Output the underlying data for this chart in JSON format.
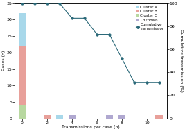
{
  "bar_data": {
    "x": [
      0,
      1,
      2,
      3,
      4,
      5,
      6,
      7,
      8,
      9,
      10,
      11
    ],
    "cluster_a": [
      10,
      0,
      0,
      1,
      0,
      0,
      0,
      0,
      0,
      0,
      0,
      0
    ],
    "cluster_b": [
      18,
      0,
      1,
      0,
      0,
      0,
      0,
      0,
      0,
      0,
      0,
      1
    ],
    "cluster_c": [
      4,
      0,
      0,
      0,
      0,
      0,
      0,
      0,
      0,
      0,
      0,
      0
    ],
    "unknown": [
      0,
      0,
      0,
      0,
      1,
      0,
      0,
      1,
      1,
      0,
      0,
      0
    ]
  },
  "cumulative": {
    "x": [
      0,
      1,
      2,
      3,
      4,
      5,
      6,
      7,
      8,
      9,
      10,
      11
    ],
    "y": [
      100,
      100,
      100,
      100,
      87,
      87,
      73,
      73,
      52,
      31,
      31,
      31
    ]
  },
  "colors": {
    "cluster_a": "#a8d8ea",
    "cluster_b": "#e8a09a",
    "cluster_c": "#b8d8a0",
    "unknown": "#b0a8d0",
    "line": "#2a6878",
    "marker_face": "#2a6878",
    "marker_edge": "#2a6878"
  },
  "ylim_left": [
    0,
    35
  ],
  "ylim_right": [
    0,
    100
  ],
  "xlim": [
    -0.6,
    11.6
  ],
  "xlabel": "Transmissions per case (n)",
  "ylabel_left": "Cases (n)",
  "ylabel_right": "Cumulative transmission (%)",
  "xticks": [
    0,
    2,
    4,
    6,
    8,
    10
  ],
  "yticks_left": [
    0,
    5,
    10,
    15,
    20,
    25,
    30,
    35
  ],
  "yticks_right": [
    0,
    20,
    40,
    60,
    80,
    100
  ],
  "legend": {
    "labels": [
      "Cluster A",
      "Cluster B",
      "Cluster C",
      "Unknown",
      "Cumulative\ntransmission"
    ],
    "colors": [
      "#a8d8ea",
      "#e8a09a",
      "#b8d8a0",
      "#b0a8d0",
      "#2a6878"
    ]
  },
  "bar_width": 0.6,
  "background": "#ffffff",
  "figsize": [
    2.67,
    1.89
  ],
  "dpi": 100
}
